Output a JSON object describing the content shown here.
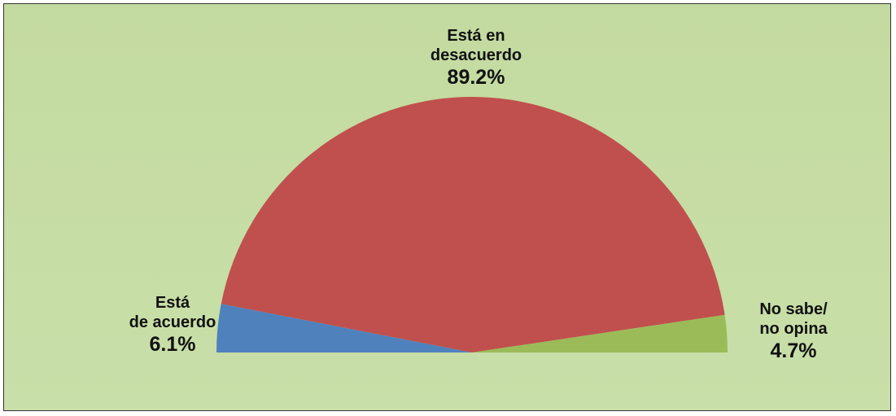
{
  "chart_data": {
    "type": "semi-pie",
    "categories": [
      "Está\nde acuerdo",
      "Está  en\ndesacuerdo",
      "No sabe/\nno opina"
    ],
    "values": [
      6.1,
      89.2,
      4.7
    ],
    "value_labels": [
      "6.1%",
      "89.2%",
      "4.7%"
    ],
    "colors": [
      "#4f81bd",
      "#c0504d",
      "#9bbb59"
    ]
  }
}
